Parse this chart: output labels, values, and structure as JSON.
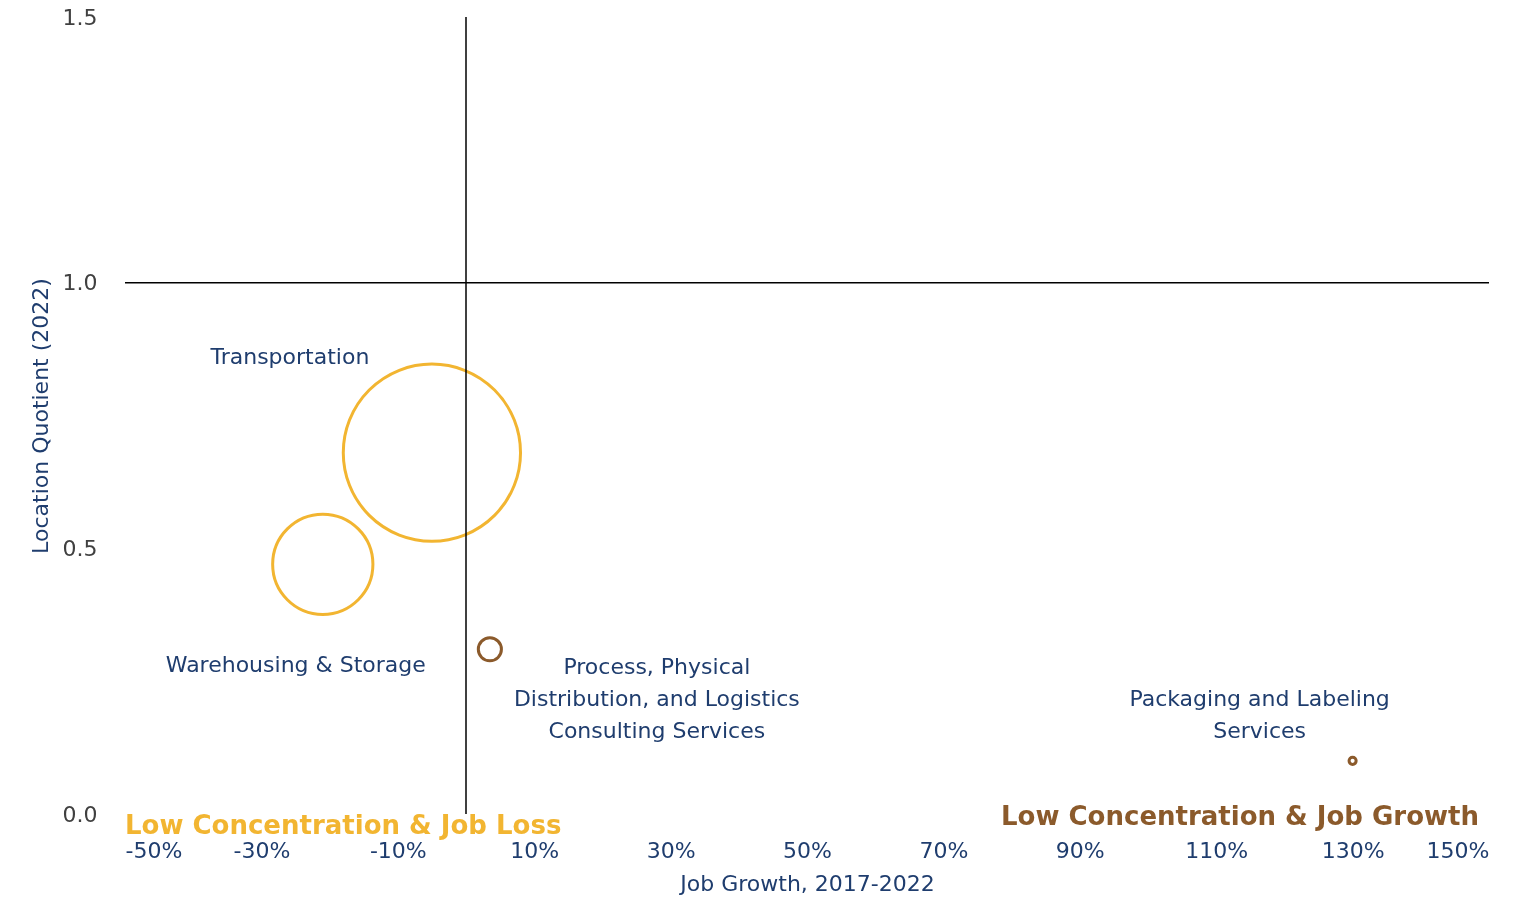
{
  "chart_data": {
    "type": "bubble",
    "xlabel": "Job Growth, 2017-2022",
    "ylabel": "Location Quotient (2022)",
    "xlim": [
      -50,
      150
    ],
    "ylim": [
      0,
      1.5
    ],
    "xticks": [
      {
        "value": -50,
        "label": "-50%"
      },
      {
        "value": -30,
        "label": "-30%"
      },
      {
        "value": -10,
        "label": "-10%"
      },
      {
        "value": 10,
        "label": "10%"
      },
      {
        "value": 30,
        "label": "30%"
      },
      {
        "value": 50,
        "label": "50%"
      },
      {
        "value": 70,
        "label": "70%"
      },
      {
        "value": 90,
        "label": "90%"
      },
      {
        "value": 110,
        "label": "110%"
      },
      {
        "value": 130,
        "label": "130%"
      },
      {
        "value": 150,
        "label": "150%"
      }
    ],
    "yticks": [
      {
        "value": 0,
        "label": "0.0"
      },
      {
        "value": 0.5,
        "label": "0.5"
      },
      {
        "value": 1,
        "label": "1.0"
      },
      {
        "value": 1.5,
        "label": "1.5"
      }
    ],
    "grid": false,
    "series": [
      {
        "name": "Transportation",
        "color": "#f2b531",
        "x": [
          -5
        ],
        "values": [
          0.68
        ],
        "sizes": [
          1
        ]
      },
      {
        "name": "Warehousing & Storage",
        "color": "#f2b531",
        "x": [
          -21
        ],
        "values": [
          0.47
        ],
        "sizes": [
          0.32
        ]
      },
      {
        "name": "Process, Physical Distribution, and Logistics Consulting Services",
        "color": "#8b5a2b",
        "x": [
          3.5
        ],
        "values": [
          0.31
        ],
        "sizes": [
          0.017
        ]
      },
      {
        "name": "Packaging and Labeling Services",
        "color": "#8b5a2b",
        "x": [
          130
        ],
        "values": [
          0.1
        ],
        "sizes": [
          0.0016
        ]
      }
    ],
    "ref_lines": [
      {
        "axis": "x",
        "value": 0,
        "color": "#000000"
      },
      {
        "axis": "y",
        "value": 1,
        "color": "#000000"
      }
    ],
    "annotations": [
      "Low Concentration & Job Loss",
      "Low Concentration & Job Growth"
    ]
  }
}
